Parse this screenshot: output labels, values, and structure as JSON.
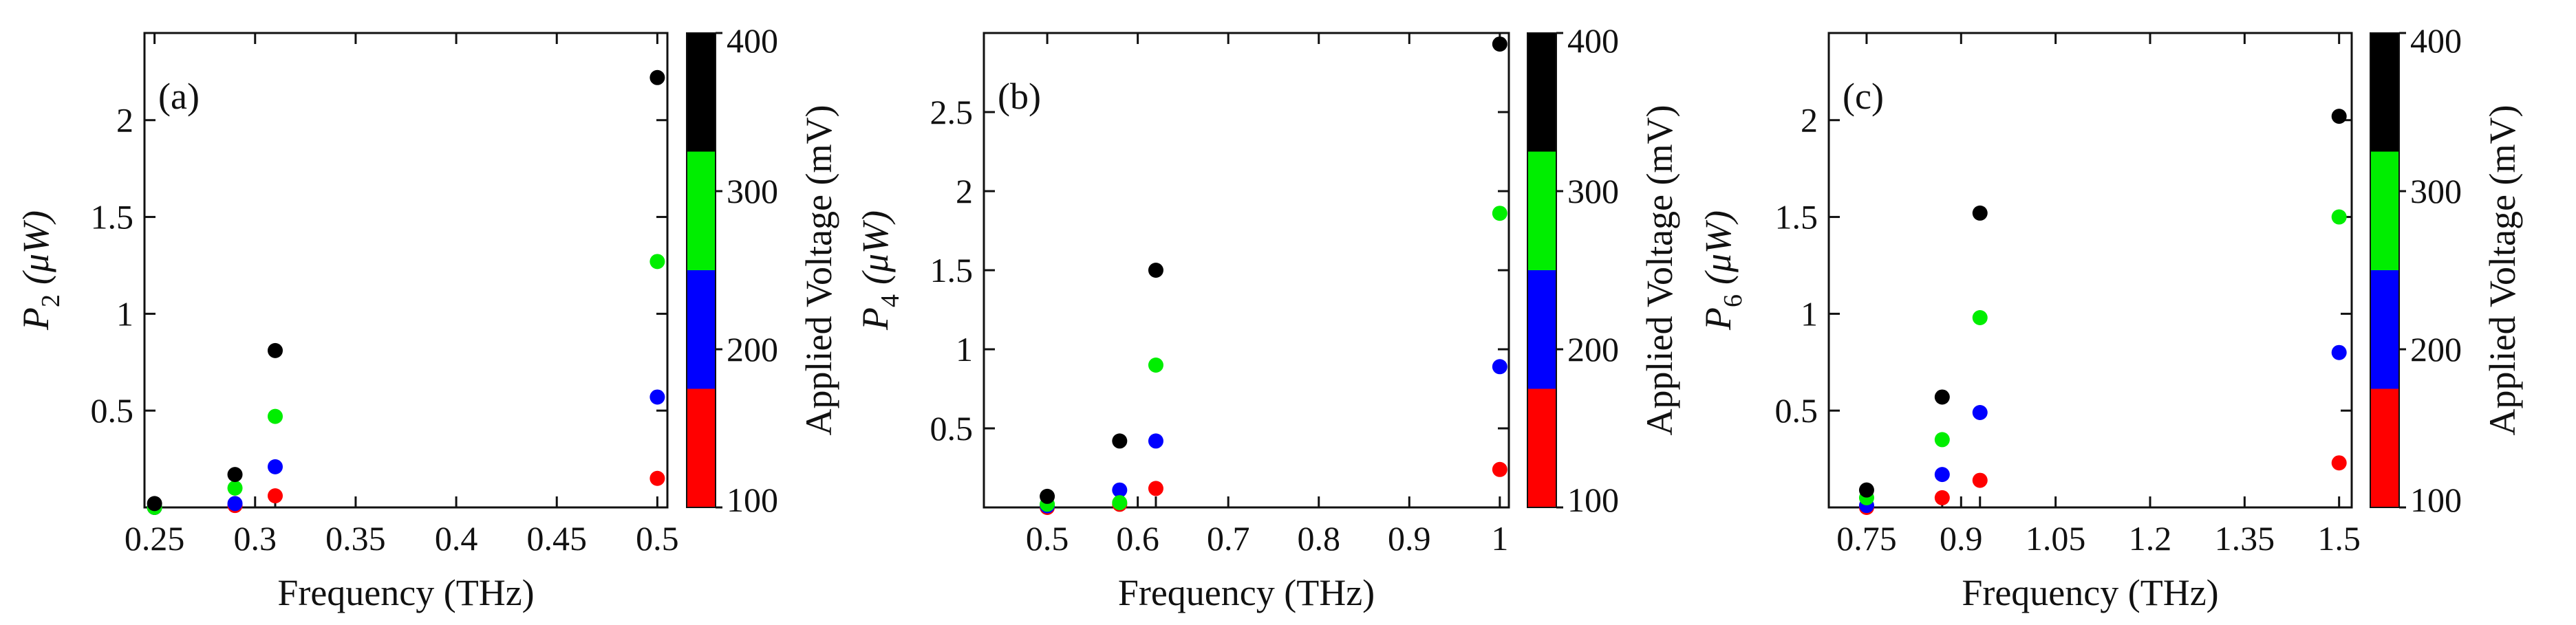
{
  "chart_data": [
    {
      "type": "scatter",
      "panel_label": "(a)",
      "xlabel": "Frequency (THz)",
      "ylabel_symbol": "P",
      "ylabel_subscript": "2",
      "ylabel_units": "(μW)",
      "xlim": [
        0.245,
        0.505
      ],
      "ylim": [
        0,
        2.45
      ],
      "xticks": [
        0.25,
        0.3,
        0.35,
        0.4,
        0.45,
        0.5
      ],
      "xtick_labels": [
        "0.25",
        "0.3",
        "0.35",
        "0.4",
        "0.45",
        "0.5"
      ],
      "extra_xticks": [
        0.29,
        0.31
      ],
      "yticks": [
        0.5,
        1,
        1.5,
        2
      ],
      "ytick_labels": [
        "0.5",
        "1",
        "1.5",
        "2"
      ],
      "colorbar": {
        "label": "Applied Voltage (mV)",
        "min": 100,
        "max": 400,
        "ticks": [
          100,
          200,
          300,
          400
        ],
        "tick_labels": [
          "100",
          "200",
          "300",
          "400"
        ],
        "bands": [
          {
            "from": 100,
            "to": 175,
            "color": "#ff0000"
          },
          {
            "from": 175,
            "to": 250,
            "color": "#0000ff"
          },
          {
            "from": 250,
            "to": 325,
            "color": "#00ee00"
          },
          {
            "from": 325,
            "to": 400,
            "color": "#000000"
          }
        ]
      },
      "series": [
        {
          "name": "100 mV",
          "color": "#ff0000",
          "x": [
            0.25,
            0.29,
            0.31,
            0.5
          ],
          "y": [
            0.0,
            0.01,
            0.06,
            0.15
          ]
        },
        {
          "name": "200 mV",
          "color": "#0000ff",
          "x": [
            0.25,
            0.29,
            0.31,
            0.5
          ],
          "y": [
            0.0,
            0.02,
            0.21,
            0.57
          ]
        },
        {
          "name": "300 mV",
          "color": "#00ee00",
          "x": [
            0.25,
            0.29,
            0.31,
            0.5
          ],
          "y": [
            0.0,
            0.1,
            0.47,
            1.27
          ]
        },
        {
          "name": "400 mV",
          "color": "#000000",
          "x": [
            0.25,
            0.29,
            0.31,
            0.5
          ],
          "y": [
            0.02,
            0.17,
            0.81,
            2.22
          ]
        }
      ]
    },
    {
      "type": "scatter",
      "panel_label": "(b)",
      "xlabel": "Frequency (THz)",
      "ylabel_symbol": "P",
      "ylabel_subscript": "4",
      "ylabel_units": "(μW)",
      "xlim": [
        0.43,
        1.01
      ],
      "ylim": [
        0,
        3.0
      ],
      "xticks": [
        0.5,
        0.6,
        0.7,
        0.8,
        0.9,
        1
      ],
      "xtick_labels": [
        "0.5",
        "0.6",
        "0.7",
        "0.8",
        "0.9",
        "1"
      ],
      "extra_xticks": [
        0.58,
        0.62
      ],
      "yticks": [
        0.5,
        1,
        1.5,
        2,
        2.5
      ],
      "ytick_labels": [
        "0.5",
        "1",
        "1.5",
        "2",
        "2.5"
      ],
      "colorbar": {
        "label": "Applied Voltage (mV)",
        "min": 100,
        "max": 400,
        "ticks": [
          100,
          200,
          300,
          400
        ],
        "tick_labels": [
          "100",
          "200",
          "300",
          "400"
        ],
        "bands": [
          {
            "from": 100,
            "to": 175,
            "color": "#ff0000"
          },
          {
            "from": 175,
            "to": 250,
            "color": "#0000ff"
          },
          {
            "from": 250,
            "to": 325,
            "color": "#00ee00"
          },
          {
            "from": 325,
            "to": 400,
            "color": "#000000"
          }
        ]
      },
      "series": [
        {
          "name": "100 mV",
          "color": "#ff0000",
          "x": [
            0.5,
            0.58,
            0.62,
            1.0
          ],
          "y": [
            0.0,
            0.02,
            0.12,
            0.24
          ]
        },
        {
          "name": "200 mV",
          "color": "#0000ff",
          "x": [
            0.5,
            0.58,
            0.62,
            1.0
          ],
          "y": [
            0.01,
            0.11,
            0.42,
            0.89
          ]
        },
        {
          "name": "300 mV",
          "color": "#00ee00",
          "x": [
            0.5,
            0.58,
            0.62,
            1.0
          ],
          "y": [
            0.02,
            0.03,
            0.9,
            1.86
          ]
        },
        {
          "name": "400 mV",
          "color": "#000000",
          "x": [
            0.5,
            0.58,
            0.62,
            1.0
          ],
          "y": [
            0.07,
            0.42,
            1.5,
            2.93
          ]
        }
      ]
    },
    {
      "type": "scatter",
      "panel_label": "(c)",
      "xlabel": "Frequency (THz)",
      "ylabel_symbol": "P",
      "ylabel_subscript": "6",
      "ylabel_units": "(μW)",
      "xlim": [
        0.69,
        1.52
      ],
      "ylim": [
        0,
        2.45
      ],
      "xticks": [
        0.75,
        0.9,
        1.05,
        1.2,
        1.35,
        1.5
      ],
      "xtick_labels": [
        "0.75",
        "0.9",
        "1.05",
        "1.2",
        "1.35",
        "1.5"
      ],
      "extra_xticks": [
        0.87,
        0.93
      ],
      "yticks": [
        0.5,
        1,
        1.5,
        2
      ],
      "ytick_labels": [
        "0.5",
        "1",
        "1.5",
        "2"
      ],
      "colorbar": {
        "label": "Applied Voltage (mV)",
        "min": 100,
        "max": 400,
        "ticks": [
          100,
          200,
          300,
          400
        ],
        "tick_labels": [
          "100",
          "200",
          "300",
          "400"
        ],
        "bands": [
          {
            "from": 100,
            "to": 175,
            "color": "#ff0000"
          },
          {
            "from": 175,
            "to": 250,
            "color": "#0000ff"
          },
          {
            "from": 250,
            "to": 325,
            "color": "#00ee00"
          },
          {
            "from": 325,
            "to": 400,
            "color": "#000000"
          }
        ]
      },
      "series": [
        {
          "name": "100 mV",
          "color": "#ff0000",
          "x": [
            0.75,
            0.87,
            0.93,
            1.5
          ],
          "y": [
            0.0,
            0.05,
            0.14,
            0.23
          ]
        },
        {
          "name": "200 mV",
          "color": "#0000ff",
          "x": [
            0.75,
            0.87,
            0.93,
            1.5
          ],
          "y": [
            0.01,
            0.17,
            0.49,
            0.8
          ]
        },
        {
          "name": "300 mV",
          "color": "#00ee00",
          "x": [
            0.75,
            0.87,
            0.93,
            1.5
          ],
          "y": [
            0.05,
            0.35,
            0.98,
            1.5
          ]
        },
        {
          "name": "400 mV",
          "color": "#000000",
          "x": [
            0.75,
            0.87,
            0.93,
            1.5
          ],
          "y": [
            0.09,
            0.57,
            1.52,
            2.02
          ]
        }
      ]
    }
  ]
}
